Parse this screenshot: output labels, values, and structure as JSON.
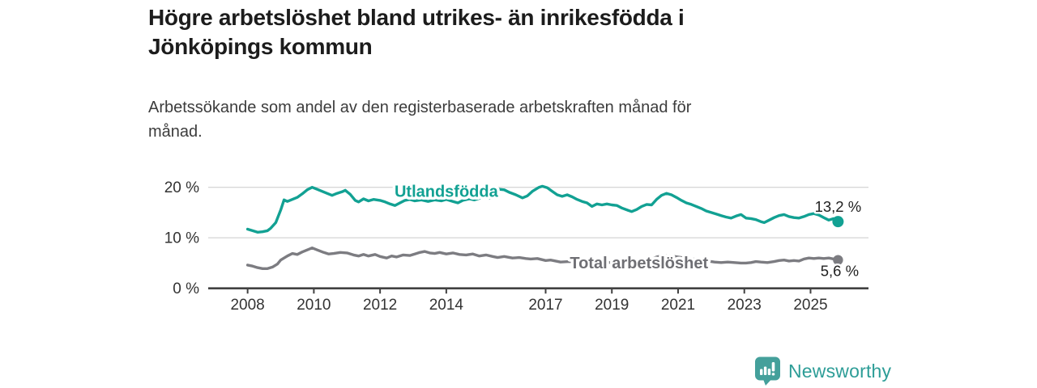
{
  "header": {
    "title_lines": [
      "Högre arbetslöshet bland utrikes- än inrikesfödda i",
      "Jönköpings kommun"
    ],
    "subtitle_lines": [
      "Arbetssökande som andel av den registerbaserade arbetskraften månad för",
      "månad."
    ]
  },
  "footer": {
    "brand": "Newsworthy"
  },
  "colors": {
    "foreign_born": "#12a193",
    "total": "#7c7c81",
    "total_label": "#6f6f74",
    "axis": "#414141",
    "grid": "#d8d8d8",
    "tick_label": "#333333",
    "end_label": "#1f1f1f",
    "logo": "#44a09b"
  },
  "chart_data": {
    "type": "line",
    "title": "Högre arbetslöshet bland utrikes- än inrikesfödda i Jönköpings kommun",
    "subtitle": "Arbetssökande som andel av den registerbaserade arbetskraften månad för månad.",
    "ylabel": "",
    "xlabel": "",
    "ylim": [
      0,
      21
    ],
    "x_domain": [
      2006.81,
      2026.75
    ],
    "grid": "horizontal",
    "y_ticks": [
      {
        "value": 0,
        "label": "0 %"
      },
      {
        "value": 10,
        "label": "10 %"
      },
      {
        "value": 20,
        "label": "20 %"
      }
    ],
    "x_ticks": [
      {
        "year": 2008,
        "label": "2008"
      },
      {
        "year": 2010,
        "label": "2010"
      },
      {
        "year": 2012,
        "label": "2012"
      },
      {
        "year": 2014,
        "label": "2014"
      },
      {
        "year": 2017,
        "label": "2017"
      },
      {
        "year": 2019,
        "label": "2019"
      },
      {
        "year": 2021,
        "label": "2021"
      },
      {
        "year": 2023,
        "label": "2023"
      },
      {
        "year": 2025,
        "label": "2025"
      }
    ],
    "series": [
      {
        "name": "Utlandsfödda",
        "color": "#12a193",
        "end_label": "13,2 %",
        "end_value": 13.2,
        "label_pos": {
          "year": 2014.0,
          "value": 18.1
        },
        "end_label_offset": [
          0,
          -12
        ],
        "dot_radius": 7,
        "points": [
          [
            2008.0,
            11.7
          ],
          [
            2008.15,
            11.4
          ],
          [
            2008.3,
            11.1
          ],
          [
            2008.45,
            11.2
          ],
          [
            2008.6,
            11.4
          ],
          [
            2008.7,
            11.9
          ],
          [
            2008.85,
            13.0
          ],
          [
            2009.0,
            15.5
          ],
          [
            2009.1,
            17.5
          ],
          [
            2009.2,
            17.2
          ],
          [
            2009.35,
            17.6
          ],
          [
            2009.5,
            18.0
          ],
          [
            2009.65,
            18.7
          ],
          [
            2009.8,
            19.5
          ],
          [
            2009.95,
            20.0
          ],
          [
            2010.1,
            19.6
          ],
          [
            2010.25,
            19.2
          ],
          [
            2010.4,
            18.8
          ],
          [
            2010.55,
            18.4
          ],
          [
            2010.7,
            18.8
          ],
          [
            2010.85,
            19.1
          ],
          [
            2010.95,
            19.4
          ],
          [
            2011.1,
            18.6
          ],
          [
            2011.25,
            17.4
          ],
          [
            2011.35,
            17.1
          ],
          [
            2011.5,
            17.7
          ],
          [
            2011.65,
            17.3
          ],
          [
            2011.8,
            17.6
          ],
          [
            2012.0,
            17.4
          ],
          [
            2012.15,
            17.1
          ],
          [
            2012.3,
            16.7
          ],
          [
            2012.45,
            16.4
          ],
          [
            2012.6,
            16.9
          ],
          [
            2012.75,
            17.4
          ],
          [
            2012.9,
            17.6
          ],
          [
            2013.05,
            17.3
          ],
          [
            2013.25,
            17.5
          ],
          [
            2013.45,
            17.2
          ],
          [
            2013.65,
            17.5
          ],
          [
            2013.85,
            17.3
          ],
          [
            2014.0,
            17.6
          ],
          [
            2014.2,
            17.2
          ],
          [
            2014.35,
            16.9
          ],
          [
            2014.5,
            17.4
          ],
          [
            2014.7,
            17.7
          ],
          [
            2014.85,
            17.5
          ],
          [
            2015.0,
            17.8
          ],
          [
            2015.15,
            18.1
          ],
          [
            2015.3,
            17.8
          ],
          [
            2015.45,
            18.3
          ],
          [
            2015.6,
            19.6
          ],
          [
            2015.75,
            19.5
          ],
          [
            2015.9,
            19.0
          ],
          [
            2016.1,
            18.5
          ],
          [
            2016.3,
            17.9
          ],
          [
            2016.45,
            18.3
          ],
          [
            2016.6,
            19.2
          ],
          [
            2016.8,
            20.0
          ],
          [
            2016.9,
            20.2
          ],
          [
            2017.05,
            19.9
          ],
          [
            2017.2,
            19.2
          ],
          [
            2017.35,
            18.5
          ],
          [
            2017.5,
            18.2
          ],
          [
            2017.65,
            18.5
          ],
          [
            2017.8,
            18.1
          ],
          [
            2017.95,
            17.6
          ],
          [
            2018.1,
            17.2
          ],
          [
            2018.25,
            16.9
          ],
          [
            2018.4,
            16.2
          ],
          [
            2018.55,
            16.7
          ],
          [
            2018.7,
            16.5
          ],
          [
            2018.85,
            16.7
          ],
          [
            2019.0,
            16.5
          ],
          [
            2019.15,
            16.4
          ],
          [
            2019.3,
            15.9
          ],
          [
            2019.5,
            15.4
          ],
          [
            2019.6,
            15.2
          ],
          [
            2019.75,
            15.6
          ],
          [
            2019.9,
            16.2
          ],
          [
            2020.05,
            16.6
          ],
          [
            2020.2,
            16.5
          ],
          [
            2020.35,
            17.6
          ],
          [
            2020.5,
            18.4
          ],
          [
            2020.65,
            18.8
          ],
          [
            2020.8,
            18.5
          ],
          [
            2020.95,
            18.0
          ],
          [
            2021.1,
            17.4
          ],
          [
            2021.25,
            16.9
          ],
          [
            2021.4,
            16.6
          ],
          [
            2021.55,
            16.2
          ],
          [
            2021.7,
            15.8
          ],
          [
            2021.85,
            15.3
          ],
          [
            2022.0,
            15.0
          ],
          [
            2022.15,
            14.7
          ],
          [
            2022.3,
            14.4
          ],
          [
            2022.45,
            14.1
          ],
          [
            2022.6,
            13.9
          ],
          [
            2022.75,
            14.3
          ],
          [
            2022.9,
            14.6
          ],
          [
            2023.05,
            13.9
          ],
          [
            2023.2,
            13.8
          ],
          [
            2023.35,
            13.6
          ],
          [
            2023.5,
            13.2
          ],
          [
            2023.6,
            13.0
          ],
          [
            2023.75,
            13.5
          ],
          [
            2023.9,
            14.0
          ],
          [
            2024.05,
            14.4
          ],
          [
            2024.2,
            14.6
          ],
          [
            2024.35,
            14.2
          ],
          [
            2024.5,
            14.0
          ],
          [
            2024.65,
            13.9
          ],
          [
            2024.8,
            14.2
          ],
          [
            2024.95,
            14.6
          ],
          [
            2025.1,
            14.8
          ],
          [
            2025.25,
            14.5
          ],
          [
            2025.4,
            14.0
          ],
          [
            2025.55,
            13.5
          ],
          [
            2025.7,
            13.8
          ],
          [
            2025.83,
            13.2
          ]
        ]
      },
      {
        "name": "Total arbetslöshet",
        "color": "#7c7c81",
        "label_color": "#6f6f74",
        "end_label": "5,6 %",
        "end_value": 5.6,
        "label_pos": {
          "year": 2019.82,
          "value": 3.95
        },
        "end_label_offset": [
          2,
          20
        ],
        "dot_radius": 6.2,
        "points": [
          [
            2008.0,
            4.6
          ],
          [
            2008.15,
            4.4
          ],
          [
            2008.3,
            4.1
          ],
          [
            2008.45,
            3.9
          ],
          [
            2008.6,
            3.9
          ],
          [
            2008.75,
            4.2
          ],
          [
            2008.9,
            4.8
          ],
          [
            2009.0,
            5.6
          ],
          [
            2009.2,
            6.4
          ],
          [
            2009.35,
            6.9
          ],
          [
            2009.5,
            6.7
          ],
          [
            2009.65,
            7.2
          ],
          [
            2009.8,
            7.6
          ],
          [
            2009.95,
            8.0
          ],
          [
            2010.1,
            7.6
          ],
          [
            2010.3,
            7.1
          ],
          [
            2010.45,
            6.8
          ],
          [
            2010.6,
            6.9
          ],
          [
            2010.8,
            7.1
          ],
          [
            2011.0,
            7.0
          ],
          [
            2011.2,
            6.6
          ],
          [
            2011.35,
            6.4
          ],
          [
            2011.5,
            6.7
          ],
          [
            2011.65,
            6.4
          ],
          [
            2011.85,
            6.7
          ],
          [
            2012.0,
            6.3
          ],
          [
            2012.2,
            6.0
          ],
          [
            2012.35,
            6.4
          ],
          [
            2012.5,
            6.2
          ],
          [
            2012.7,
            6.6
          ],
          [
            2012.9,
            6.5
          ],
          [
            2013.05,
            6.8
          ],
          [
            2013.2,
            7.1
          ],
          [
            2013.35,
            7.3
          ],
          [
            2013.5,
            7.0
          ],
          [
            2013.65,
            6.9
          ],
          [
            2013.8,
            7.1
          ],
          [
            2014.0,
            6.8
          ],
          [
            2014.2,
            7.0
          ],
          [
            2014.4,
            6.7
          ],
          [
            2014.6,
            6.6
          ],
          [
            2014.8,
            6.8
          ],
          [
            2015.0,
            6.4
          ],
          [
            2015.2,
            6.6
          ],
          [
            2015.4,
            6.3
          ],
          [
            2015.55,
            6.1
          ],
          [
            2015.75,
            6.3
          ],
          [
            2016.0,
            6.0
          ],
          [
            2016.2,
            6.1
          ],
          [
            2016.4,
            5.9
          ],
          [
            2016.55,
            5.8
          ],
          [
            2016.75,
            5.9
          ],
          [
            2017.0,
            5.5
          ],
          [
            2017.15,
            5.6
          ],
          [
            2017.3,
            5.4
          ],
          [
            2017.45,
            5.2
          ],
          [
            2017.7,
            5.3
          ],
          [
            2018.0,
            5.2
          ],
          [
            2018.3,
            5.3
          ],
          [
            2018.6,
            5.2
          ],
          [
            2019.0,
            5.1
          ],
          [
            2019.3,
            5.0
          ],
          [
            2019.6,
            4.9
          ],
          [
            2019.9,
            5.1
          ],
          [
            2020.1,
            5.4
          ],
          [
            2020.35,
            6.2
          ],
          [
            2020.55,
            6.5
          ],
          [
            2020.8,
            6.4
          ],
          [
            2021.0,
            6.2
          ],
          [
            2021.3,
            5.9
          ],
          [
            2021.6,
            5.7
          ],
          [
            2021.9,
            5.4
          ],
          [
            2022.1,
            5.2
          ],
          [
            2022.3,
            5.1
          ],
          [
            2022.5,
            5.2
          ],
          [
            2022.7,
            5.1
          ],
          [
            2022.9,
            5.0
          ],
          [
            2023.05,
            5.0
          ],
          [
            2023.2,
            5.1
          ],
          [
            2023.35,
            5.3
          ],
          [
            2023.5,
            5.2
          ],
          [
            2023.7,
            5.1
          ],
          [
            2023.9,
            5.3
          ],
          [
            2024.05,
            5.5
          ],
          [
            2024.2,
            5.6
          ],
          [
            2024.35,
            5.4
          ],
          [
            2024.5,
            5.5
          ],
          [
            2024.65,
            5.4
          ],
          [
            2024.8,
            5.8
          ],
          [
            2024.95,
            6.0
          ],
          [
            2025.1,
            5.9
          ],
          [
            2025.25,
            6.0
          ],
          [
            2025.4,
            5.9
          ],
          [
            2025.55,
            6.0
          ],
          [
            2025.7,
            5.8
          ],
          [
            2025.83,
            5.6
          ]
        ]
      }
    ]
  }
}
